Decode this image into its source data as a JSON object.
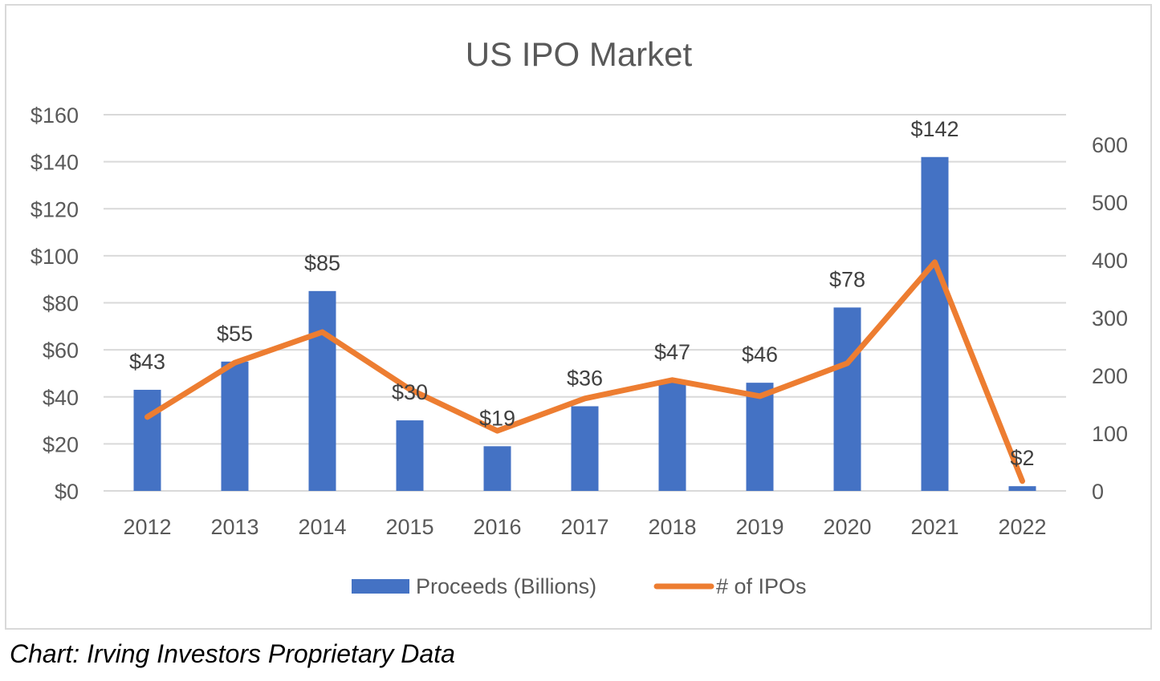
{
  "chart_data": {
    "type": "bar",
    "title": "US IPO Market",
    "categories": [
      "2012",
      "2013",
      "2014",
      "2015",
      "2016",
      "2017",
      "2018",
      "2019",
      "2020",
      "2021",
      "2022"
    ],
    "series": [
      {
        "name": "Proceeds (Billions)",
        "type": "bar",
        "axis": "left",
        "color": "#4472C4",
        "values": [
          43,
          55,
          85,
          30,
          19,
          36,
          47,
          46,
          78,
          142,
          2
        ],
        "data_labels": [
          "$43",
          "$55",
          "$85",
          "$30",
          "$19",
          "$36",
          "$47",
          "$46",
          "$78",
          "$142",
          "$2"
        ]
      },
      {
        "name": "# of IPOs",
        "type": "line",
        "axis": "right",
        "color": "#ED7D31",
        "values": [
          128,
          222,
          275,
          176,
          104,
          160,
          192,
          164,
          221,
          396,
          17
        ]
      }
    ],
    "left_axis": {
      "ylim": [
        0,
        160
      ],
      "ticks": [
        0,
        20,
        40,
        60,
        80,
        100,
        120,
        140,
        160
      ],
      "tick_labels": [
        "$0",
        "$20",
        "$40",
        "$60",
        "$80",
        "$100",
        "$120",
        "$140",
        "$160"
      ]
    },
    "right_axis": {
      "ylim": [
        0,
        600
      ],
      "ticks": [
        0,
        100,
        200,
        300,
        400,
        500,
        600
      ],
      "tick_labels": [
        "0",
        "100",
        "200",
        "300",
        "400",
        "500",
        "600"
      ]
    },
    "xlabel": "",
    "ylabel": "",
    "grid": true,
    "legend_position": "bottom"
  },
  "source_note": "Chart: Irving Investors Proprietary Data"
}
